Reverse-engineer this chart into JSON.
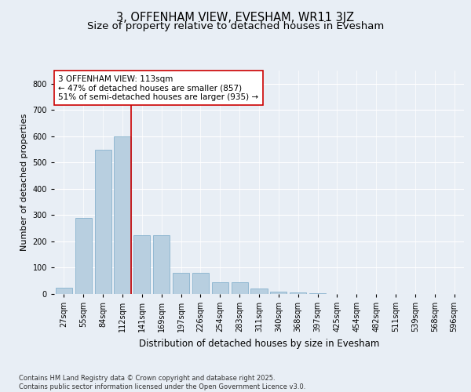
{
  "title": "3, OFFENHAM VIEW, EVESHAM, WR11 3JZ",
  "subtitle": "Size of property relative to detached houses in Evesham",
  "xlabel": "Distribution of detached houses by size in Evesham",
  "ylabel": "Number of detached properties",
  "categories": [
    "27sqm",
    "55sqm",
    "84sqm",
    "112sqm",
    "141sqm",
    "169sqm",
    "197sqm",
    "226sqm",
    "254sqm",
    "283sqm",
    "311sqm",
    "340sqm",
    "368sqm",
    "397sqm",
    "425sqm",
    "454sqm",
    "482sqm",
    "511sqm",
    "539sqm",
    "568sqm",
    "596sqm"
  ],
  "values": [
    25,
    290,
    550,
    600,
    225,
    225,
    80,
    80,
    45,
    45,
    20,
    10,
    7,
    2,
    1,
    0,
    0,
    0,
    0,
    0,
    0
  ],
  "bar_color": "#b8cfe0",
  "bar_edge_color": "#7aaac8",
  "vline_color": "#cc0000",
  "vline_xindex": 3,
  "annotation_text": "3 OFFENHAM VIEW: 113sqm\n← 47% of detached houses are smaller (857)\n51% of semi-detached houses are larger (935) →",
  "annotation_box_facecolor": "#ffffff",
  "annotation_box_edgecolor": "#cc0000",
  "ylim": [
    0,
    850
  ],
  "yticks": [
    0,
    100,
    200,
    300,
    400,
    500,
    600,
    700,
    800
  ],
  "bg_color": "#e8eef5",
  "plot_bg_color": "#e8eef5",
  "footer_text": "Contains HM Land Registry data © Crown copyright and database right 2025.\nContains public sector information licensed under the Open Government Licence v3.0.",
  "title_fontsize": 10.5,
  "subtitle_fontsize": 9.5,
  "xlabel_fontsize": 8.5,
  "ylabel_fontsize": 8,
  "tick_fontsize": 7,
  "footer_fontsize": 6,
  "annotation_fontsize": 7.5
}
